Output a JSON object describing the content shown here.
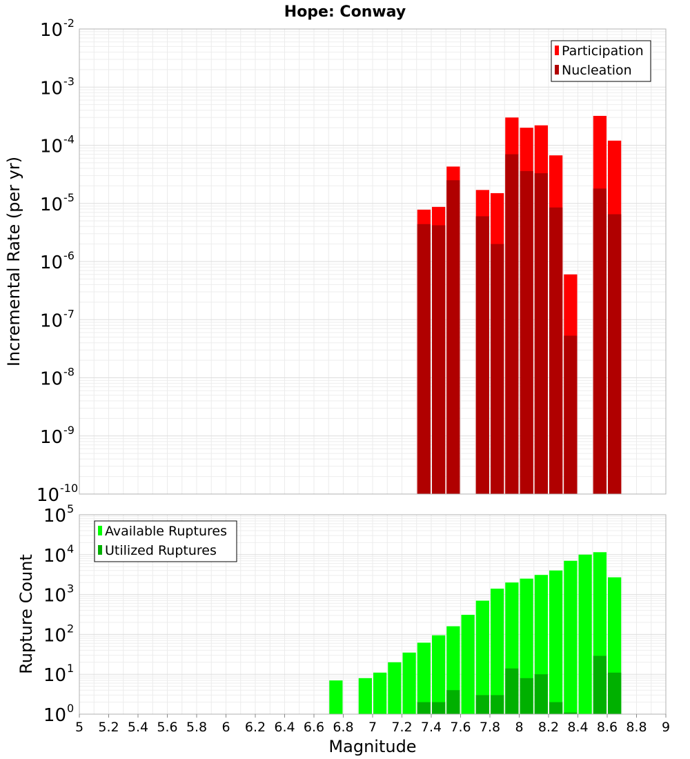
{
  "chart_data": [
    {
      "type": "bar",
      "title": "Hope: Conway",
      "ylabel": "Incremental Rate (per yr)",
      "xlabel": "",
      "xlim": [
        5,
        9
      ],
      "ylim": [
        1e-10,
        0.01
      ],
      "yscale": "log",
      "grid": true,
      "legend_position": "top-right",
      "bin_width": 0.1,
      "y_tick_exponents": [
        -10,
        -9,
        -8,
        -7,
        -6,
        -5,
        -4,
        -3,
        -2
      ],
      "series": [
        {
          "name": "Participation",
          "color": "#ff0000",
          "x": [
            7.35,
            7.45,
            7.55,
            7.75,
            7.85,
            7.95,
            8.05,
            8.15,
            8.25,
            8.35,
            8.55,
            8.65
          ],
          "values": [
            7.8e-06,
            8.7e-06,
            4.3e-05,
            1.7e-05,
            1.5e-05,
            0.0003,
            0.0002,
            0.00022,
            6.7e-05,
            6e-07,
            0.00032,
            0.00012
          ]
        },
        {
          "name": "Nucleation",
          "color": "#b00000",
          "x": [
            7.35,
            7.45,
            7.55,
            7.75,
            7.85,
            7.95,
            8.05,
            8.15,
            8.25,
            8.35,
            8.55,
            8.65
          ],
          "values": [
            4.4e-06,
            4.2e-06,
            2.5e-05,
            6e-06,
            2e-06,
            7e-05,
            3.6e-05,
            3.3e-05,
            8.5e-06,
            5.3e-08,
            1.8e-05,
            6.5e-06
          ]
        }
      ]
    },
    {
      "type": "bar",
      "title": "",
      "ylabel": "Rupture Count",
      "xlabel": "Magnitude",
      "xlim": [
        5,
        9
      ],
      "ylim": [
        1,
        100000.0
      ],
      "yscale": "log",
      "grid": true,
      "legend_position": "top-left",
      "bin_width": 0.1,
      "y_tick_exponents": [
        0,
        1,
        2,
        3,
        4,
        5
      ],
      "x_ticks": [
        "5",
        "5.2",
        "5.4",
        "5.6",
        "5.8",
        "6",
        "6.2",
        "6.4",
        "6.6",
        "6.8",
        "7",
        "7.2",
        "7.4",
        "7.6",
        "7.8",
        "8",
        "8.2",
        "8.4",
        "8.6",
        "8.8",
        "9"
      ],
      "series": [
        {
          "name": "Available Ruptures",
          "color": "#00ff00",
          "x": [
            6.75,
            6.95,
            7.05,
            7.15,
            7.25,
            7.35,
            7.45,
            7.55,
            7.65,
            7.75,
            7.85,
            7.95,
            8.05,
            8.15,
            8.25,
            8.35,
            8.45,
            8.55,
            8.65
          ],
          "values": [
            7,
            8,
            11,
            20,
            35,
            62,
            95,
            160,
            310,
            700,
            1400,
            2000,
            2500,
            3100,
            4000,
            7000,
            10000,
            11500,
            2700
          ]
        },
        {
          "name": "Utilized Ruptures",
          "color": "#00b000",
          "x": [
            7.35,
            7.45,
            7.55,
            7.75,
            7.85,
            7.95,
            8.05,
            8.15,
            8.25,
            8.35,
            8.55,
            8.65
          ],
          "values": [
            2,
            2,
            4,
            3,
            3,
            14,
            8,
            10,
            2,
            1.1,
            29,
            11
          ]
        }
      ]
    }
  ]
}
